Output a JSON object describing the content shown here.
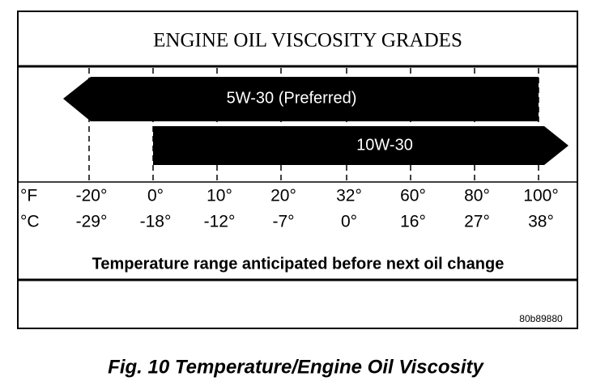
{
  "title": "ENGINE OIL VISCOSITY GRADES",
  "grades": [
    {
      "label": "5W-30 (Preferred)"
    },
    {
      "label": "10W-30"
    }
  ],
  "scale": {
    "fahrenheit": {
      "unit": "°F",
      "values": [
        "-20°",
        "0°",
        "10°",
        "20°",
        "32°",
        "60°",
        "80°",
        "100°"
      ]
    },
    "celsius": {
      "unit": "°C",
      "values": [
        "-29°",
        "-18°",
        "-12°",
        "-7°",
        "0°",
        "16°",
        "27°",
        "38°"
      ]
    }
  },
  "range_note": "Temperature range anticipated before next oil change",
  "figure_id": "80b89880",
  "caption": "Fig. 10 Temperature/Engine Oil Viscosity"
}
